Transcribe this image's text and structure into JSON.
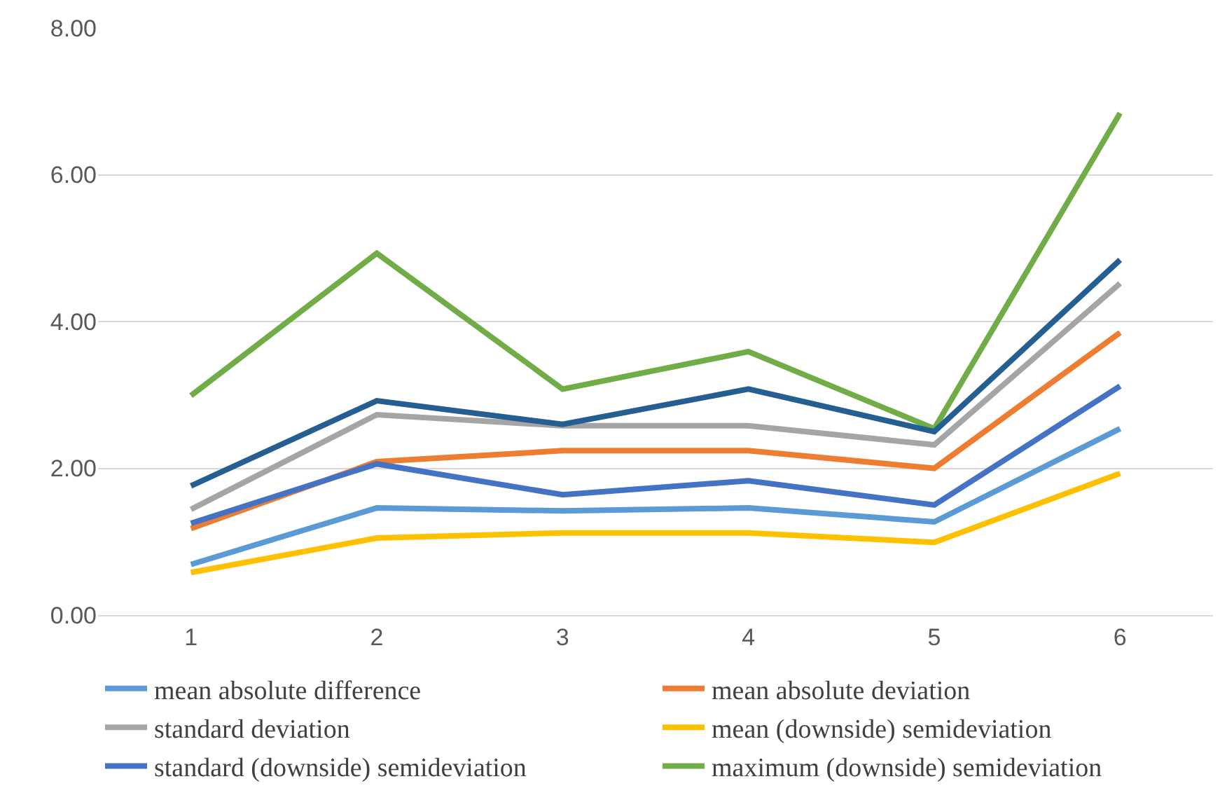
{
  "chart_data": {
    "type": "line",
    "categories": [
      "1",
      "2",
      "3",
      "4",
      "5",
      "6"
    ],
    "series": [
      {
        "name": "mean absolute difference",
        "color": "#5b9bd5",
        "values": [
          0.69,
          1.46,
          1.42,
          1.46,
          1.27,
          2.54
        ]
      },
      {
        "name": "mean absolute deviation",
        "color": "#ed7d31",
        "values": [
          1.18,
          2.09,
          2.24,
          2.24,
          2.0,
          3.85
        ]
      },
      {
        "name": "standard deviation",
        "color": "#a5a5a5",
        "values": [
          1.44,
          2.73,
          2.58,
          2.58,
          2.32,
          4.52
        ]
      },
      {
        "name": "mean (downside) semideviation",
        "color": "#ffc000",
        "values": [
          0.58,
          1.05,
          1.12,
          1.12,
          0.99,
          1.93
        ]
      },
      {
        "name": "standard (downside) semideviation",
        "color": "#4472c4",
        "values": [
          1.25,
          2.06,
          1.64,
          1.83,
          1.5,
          3.12
        ]
      },
      {
        "name": "maximum (downside) semideviation",
        "color": "#70ad47",
        "values": [
          2.99,
          4.93,
          3.08,
          3.59,
          2.54,
          6.84
        ]
      },
      {
        "color": "#255e91",
        "values": [
          1.76,
          2.92,
          2.6,
          3.08,
          2.5,
          4.84
        ]
      }
    ],
    "ylim": [
      0,
      8
    ],
    "yticks": [
      {
        "value": 0,
        "label": "0.00"
      },
      {
        "value": 2,
        "label": "2.00"
      },
      {
        "value": 4,
        "label": "4.00"
      },
      {
        "value": 6,
        "label": "6.00"
      },
      {
        "value": 8,
        "label": "8.00"
      }
    ],
    "grid": "y",
    "legend": "bottom",
    "marker": "none",
    "line_style": "solid"
  }
}
